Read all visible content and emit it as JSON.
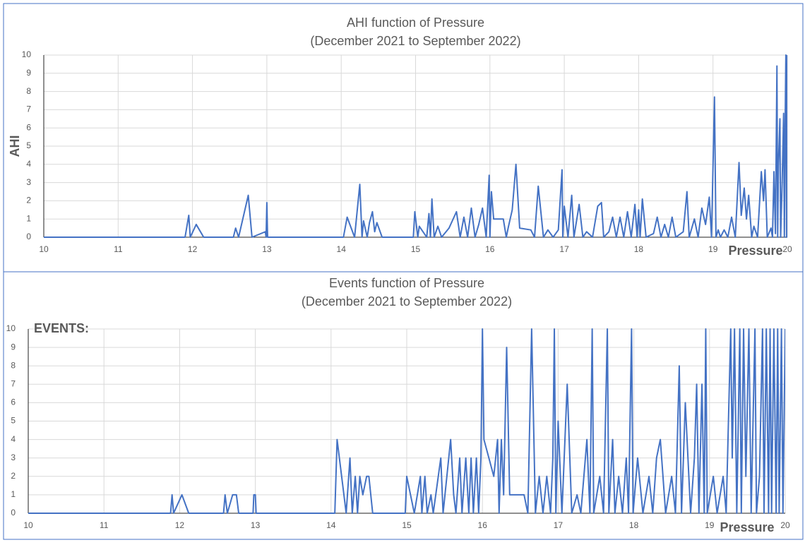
{
  "chart_data": [
    {
      "type": "line",
      "title": "AHI function of Pressure",
      "subtitle": "(December 2021 to September 2022)",
      "y_label": "AHI",
      "x_label": "Pressure",
      "color": "#4472c4",
      "grid": true,
      "xlim": [
        10,
        20
      ],
      "xticks": [
        10,
        11,
        12,
        13,
        14,
        15,
        16,
        17,
        18,
        19,
        20
      ],
      "ylim": [
        0,
        10
      ],
      "yticks": [
        0,
        1,
        2,
        3,
        4,
        5,
        6,
        7,
        8,
        9,
        10
      ],
      "x": [
        10,
        11.9,
        11.95,
        11.97,
        12.05,
        12.15,
        12.55,
        12.58,
        12.62,
        12.75,
        12.8,
        12.98,
        12.99,
        13.0,
        13.01,
        14.03,
        14.08,
        14.18,
        14.25,
        14.28,
        14.3,
        14.35,
        14.38,
        14.42,
        14.45,
        14.48,
        14.55,
        14.97,
        14.99,
        15.03,
        15.05,
        15.15,
        15.18,
        15.2,
        15.22,
        15.25,
        15.3,
        15.35,
        15.45,
        15.55,
        15.6,
        15.65,
        15.7,
        15.75,
        15.8,
        15.85,
        15.9,
        15.95,
        15.99,
        16.0,
        16.02,
        16.05,
        16.18,
        16.22,
        16.25,
        16.3,
        16.35,
        16.4,
        16.55,
        16.6,
        16.65,
        16.72,
        16.78,
        16.85,
        16.92,
        16.97,
        16.98,
        17.0,
        17.05,
        17.1,
        17.13,
        17.2,
        17.25,
        17.3,
        17.38,
        17.45,
        17.5,
        17.53,
        17.6,
        17.65,
        17.7,
        17.75,
        17.8,
        17.85,
        17.9,
        17.95,
        17.98,
        18.0,
        18.02,
        18.05,
        18.1,
        18.2,
        18.25,
        18.3,
        18.35,
        18.4,
        18.45,
        18.5,
        18.6,
        18.65,
        18.68,
        18.75,
        18.8,
        18.85,
        18.9,
        18.95,
        18.98,
        19.02,
        19.04,
        19.07,
        19.1,
        19.15,
        19.2,
        19.25,
        19.3,
        19.35,
        19.38,
        19.42,
        19.45,
        19.48,
        19.52,
        19.55,
        19.6,
        19.65,
        19.68,
        19.7,
        19.73,
        19.78,
        19.8,
        19.82,
        19.84,
        19.86,
        19.87,
        19.88,
        19.9,
        19.91,
        19.93,
        19.95,
        19.96,
        19.97,
        19.98,
        19.99,
        20.0
      ],
      "values": [
        0,
        0,
        1.2,
        0,
        0.7,
        0,
        0,
        0.5,
        0,
        2.3,
        0,
        0.3,
        0,
        1.9,
        0,
        0,
        1.1,
        0,
        2.9,
        0,
        0.9,
        0,
        0.8,
        1.4,
        0.3,
        0.8,
        0,
        0,
        1.4,
        0,
        0.6,
        0,
        1.3,
        0,
        2.1,
        0,
        0.6,
        0,
        0.5,
        1.4,
        0,
        1.1,
        0,
        1.6,
        0,
        0.7,
        1.6,
        0,
        3.4,
        0,
        2.5,
        1.0,
        1.0,
        0,
        0.6,
        1.5,
        4.0,
        0.5,
        0.4,
        0,
        2.8,
        0,
        0.4,
        0,
        0.4,
        3.7,
        0,
        1.7,
        0,
        2.3,
        0,
        1.8,
        0,
        0.3,
        0,
        1.7,
        1.9,
        0,
        0.3,
        1.1,
        0,
        1.1,
        0,
        1.4,
        0,
        1.8,
        0,
        1.5,
        0,
        2.1,
        0,
        0.2,
        1.1,
        0,
        0.7,
        0,
        1.1,
        0,
        0.3,
        2.5,
        0,
        1.0,
        0,
        1.6,
        0.7,
        2.2,
        0,
        7.7,
        0,
        0.4,
        0,
        0.4,
        0,
        1.1,
        0,
        4.1,
        1.2,
        2.7,
        1.0,
        2.3,
        0,
        0.6,
        0,
        3.6,
        2.0,
        3.7,
        0,
        0.5,
        0,
        3.6,
        0.2,
        9.4,
        0,
        4.0,
        6.5,
        0,
        3.0,
        6.8,
        0,
        6.0,
        10,
        0,
        10
      ]
    },
    {
      "type": "line",
      "title": "Events function of Pressure",
      "subtitle": "(December 2021 to September 2022)",
      "y_label": "EVENTS:",
      "x_label": "Pressure",
      "color": "#4472c4",
      "grid": true,
      "xlim": [
        10,
        20
      ],
      "xticks": [
        10,
        11,
        12,
        13,
        14,
        15,
        16,
        17,
        18,
        19,
        20
      ],
      "ylim": [
        0,
        10
      ],
      "yticks": [
        0,
        1,
        2,
        3,
        4,
        5,
        6,
        7,
        8,
        9,
        10
      ],
      "x": [
        10,
        11.88,
        11.9,
        11.92,
        12.03,
        12.12,
        12.58,
        12.6,
        12.63,
        12.7,
        12.75,
        12.78,
        12.97,
        12.98,
        13.0,
        13.01,
        14.05,
        14.08,
        14.2,
        14.25,
        14.28,
        14.32,
        14.35,
        14.38,
        14.42,
        14.47,
        14.5,
        14.55,
        14.98,
        15.0,
        15.05,
        15.1,
        15.18,
        15.2,
        15.24,
        15.27,
        15.32,
        15.35,
        15.45,
        15.48,
        15.58,
        15.62,
        15.65,
        15.7,
        15.73,
        15.78,
        15.82,
        15.85,
        15.88,
        15.92,
        15.95,
        15.98,
        16.0,
        16.02,
        16.15,
        16.2,
        16.22,
        16.25,
        16.28,
        16.32,
        16.36,
        16.55,
        16.6,
        16.65,
        16.7,
        16.75,
        16.8,
        16.85,
        16.9,
        16.93,
        16.95,
        16.97,
        17.0,
        17.05,
        17.12,
        17.18,
        17.25,
        17.3,
        17.38,
        17.42,
        17.45,
        17.47,
        17.55,
        17.6,
        17.65,
        17.67,
        17.72,
        17.75,
        17.8,
        17.85,
        17.9,
        17.93,
        17.97,
        17.99,
        18.05,
        18.12,
        18.2,
        18.25,
        18.3,
        18.35,
        18.42,
        18.5,
        18.55,
        18.6,
        18.63,
        18.68,
        18.75,
        18.8,
        18.83,
        18.86,
        18.9,
        18.93,
        18.95,
        18.97,
        19.05,
        19.1,
        19.18,
        19.22,
        19.28,
        19.3,
        19.33,
        19.36,
        19.4,
        19.42,
        19.45,
        19.48,
        19.52,
        19.55,
        19.6,
        19.62,
        19.66,
        19.7,
        19.72,
        19.75,
        19.78,
        19.8,
        19.82,
        19.85,
        19.88,
        19.9,
        19.92,
        19.95,
        19.97,
        20.0
      ],
      "values": [
        0,
        0,
        1,
        0,
        1,
        0,
        0,
        1,
        0,
        1,
        1,
        0,
        0,
        1,
        1,
        0,
        0,
        4,
        0,
        3,
        0,
        2,
        0,
        2,
        1,
        2,
        2,
        0,
        0,
        2,
        1,
        0,
        2,
        0,
        2,
        0,
        1,
        0,
        3,
        0,
        4,
        1,
        0,
        3,
        0,
        3,
        0,
        3,
        0,
        3,
        0,
        3,
        10,
        4,
        2,
        4,
        0,
        4,
        1,
        9,
        1,
        1,
        0,
        10,
        0,
        2,
        0,
        2,
        0,
        3,
        10,
        0,
        5,
        0,
        7,
        0,
        1,
        0,
        4,
        0,
        10,
        0,
        2,
        0,
        10,
        0,
        4,
        0,
        2,
        0,
        3,
        0,
        10,
        0,
        3,
        0,
        2,
        0,
        3,
        4,
        0,
        2,
        0,
        8,
        0,
        6,
        0,
        3,
        7,
        0,
        7,
        0,
        10,
        0,
        2,
        0,
        2,
        0,
        10,
        3,
        10,
        0,
        10,
        0,
        10,
        2,
        10,
        0,
        10,
        0,
        2,
        10,
        0,
        10,
        0,
        10,
        0,
        10,
        0,
        10,
        0,
        10,
        0,
        10
      ]
    }
  ]
}
